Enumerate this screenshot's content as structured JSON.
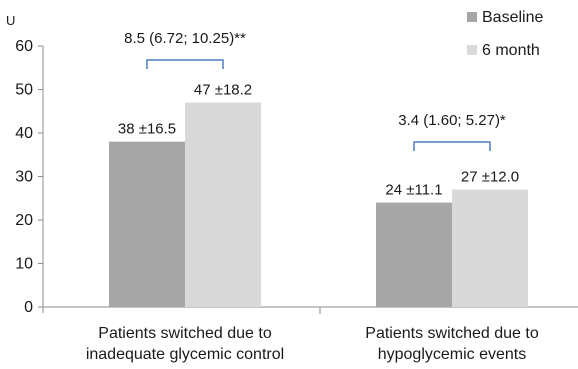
{
  "chart_data": {
    "type": "bar",
    "y_unit": "U",
    "ylim": [
      0,
      60
    ],
    "yticks": [
      "0",
      "10",
      "20",
      "30",
      "40",
      "50",
      "60"
    ],
    "categories": [
      [
        "Patients switched due to",
        "inadequate glycemic control"
      ],
      [
        "Patients switched due to",
        "hypoglycemic events"
      ]
    ],
    "series": [
      {
        "name": "Baseline",
        "color": "#a6a6a6",
        "values": [
          38,
          24
        ],
        "labels": [
          "38 ±16.5",
          "24 ±11.1"
        ]
      },
      {
        "name": "6 month",
        "color": "#d9d9d9",
        "values": [
          47,
          27
        ],
        "labels": [
          "47 ±18.2",
          "27 ±12.0"
        ]
      }
    ],
    "annotations": [
      "8.5 (6.72; 10.25)**",
      "3.4 (1.60; 5.27)*"
    ],
    "bracket_color": "#4a7ebb",
    "legend_position": "top-right",
    "grid": false
  }
}
